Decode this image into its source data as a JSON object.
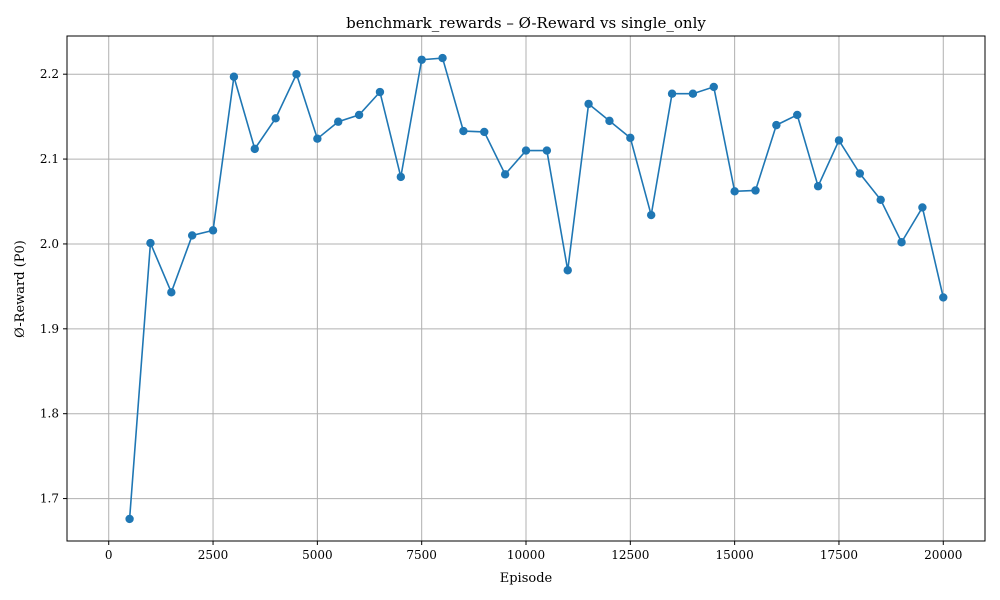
{
  "chart_data": {
    "type": "line",
    "title": "benchmark_rewards – Ø-Reward vs single_only",
    "xlabel": "Episode",
    "ylabel": "Ø-Reward (P0)",
    "xlim": [
      -1000,
      21000
    ],
    "ylim": [
      1.65,
      2.245
    ],
    "xticks": [
      0,
      2500,
      5000,
      7500,
      10000,
      12500,
      15000,
      17500,
      20000
    ],
    "yticks": [
      1.7,
      1.8,
      1.9,
      2.0,
      2.1,
      2.2
    ],
    "grid": true,
    "color": "#1f77b4",
    "series": [
      {
        "x": [
          500,
          1000,
          1500,
          2000,
          2500,
          3000,
          3500,
          4000,
          4500,
          5000,
          5500,
          6000,
          6500,
          7000,
          7500,
          8000,
          8500,
          9000,
          9500,
          10000,
          10500,
          11000,
          11500,
          12000,
          12500,
          13000,
          13500,
          14000,
          14500,
          15000,
          15500,
          16000,
          16500,
          17000,
          17500,
          18000,
          18500,
          19000,
          19500,
          20000
        ],
        "values": [
          1.676,
          2.001,
          1.943,
          2.01,
          2.016,
          2.197,
          2.112,
          2.148,
          2.2,
          2.124,
          2.144,
          2.152,
          2.179,
          2.079,
          2.217,
          2.219,
          2.133,
          2.132,
          2.082,
          2.11,
          2.11,
          1.969,
          2.165,
          2.145,
          2.125,
          2.034,
          2.177,
          2.177,
          2.185,
          2.062,
          2.063,
          2.14,
          2.152,
          2.068,
          2.122,
          2.083,
          2.052,
          2.002,
          2.043,
          1.937
        ]
      }
    ]
  }
}
